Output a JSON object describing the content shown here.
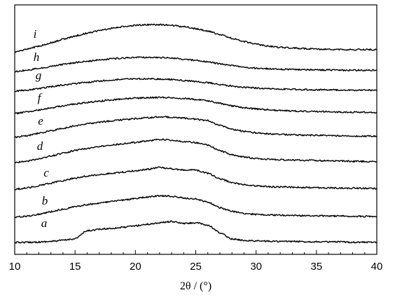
{
  "chart_data": {
    "type": "line",
    "xlabel": "2θ / (°)",
    "xlim": [
      10,
      40
    ],
    "xticks": [
      10,
      15,
      20,
      25,
      30,
      35,
      40
    ],
    "y_axis_ticks_labeled": false,
    "grid": false,
    "legend": "none",
    "line_color": "#000000",
    "x": [
      10,
      11,
      12,
      13,
      14,
      15,
      16,
      17,
      18,
      19,
      20,
      21,
      22,
      23,
      24,
      25,
      26,
      27,
      28,
      29,
      30,
      31,
      32,
      33,
      34,
      35,
      36,
      37,
      38,
      39,
      40
    ],
    "series": [
      {
        "name": "a",
        "values": [
          0.0,
          0.05,
          0.18,
          0.4,
          0.85,
          1.5,
          4.6,
          5.2,
          5.6,
          6.0,
          6.6,
          7.2,
          7.8,
          8.3,
          7.5,
          7.8,
          6.8,
          3.8,
          1.4,
          0.8,
          0.6,
          0.5,
          0.4,
          0.4,
          0.3,
          0.3,
          0.2,
          0.2,
          0.1,
          0.1,
          0.1
        ]
      },
      {
        "name": "b",
        "values": [
          0.0,
          0.4,
          1.2,
          2.2,
          3.2,
          4.2,
          5.0,
          5.6,
          6.2,
          6.8,
          7.4,
          8.0,
          8.5,
          8.3,
          7.6,
          7.2,
          6.0,
          3.8,
          2.3,
          1.5,
          1.1,
          0.9,
          0.8,
          0.7,
          0.6,
          0.55,
          0.5,
          0.45,
          0.4,
          0.35,
          0.3
        ]
      },
      {
        "name": "c",
        "values": [
          0.0,
          0.5,
          1.4,
          2.4,
          3.4,
          4.4,
          5.2,
          5.8,
          6.3,
          6.8,
          7.3,
          7.9,
          8.6,
          8.1,
          7.6,
          7.6,
          6.3,
          4.1,
          2.6,
          1.8,
          1.3,
          1.0,
          0.9,
          0.8,
          0.7,
          0.6,
          0.5,
          0.45,
          0.4,
          0.35,
          0.3
        ]
      },
      {
        "name": "d",
        "values": [
          0.0,
          0.5,
          1.5,
          2.6,
          3.7,
          4.8,
          5.6,
          6.3,
          6.9,
          7.5,
          8.0,
          8.6,
          9.2,
          8.9,
          8.4,
          7.9,
          6.9,
          4.7,
          3.1,
          2.2,
          1.6,
          1.3,
          1.1,
          1.0,
          0.9,
          0.8,
          0.7,
          0.6,
          0.5,
          0.45,
          0.4
        ]
      },
      {
        "name": "e",
        "values": [
          0.0,
          0.6,
          1.6,
          2.6,
          3.6,
          4.6,
          5.4,
          6.0,
          6.5,
          7.0,
          7.4,
          7.8,
          8.1,
          8.0,
          7.6,
          7.2,
          6.6,
          4.8,
          3.2,
          2.4,
          1.8,
          1.4,
          1.2,
          1.0,
          0.9,
          0.8,
          0.7,
          0.6,
          0.55,
          0.5,
          0.45
        ]
      },
      {
        "name": "f",
        "values": [
          0.0,
          0.6,
          1.4,
          2.2,
          3.0,
          3.8,
          4.4,
          4.9,
          5.4,
          5.8,
          6.1,
          6.3,
          6.4,
          6.3,
          6.0,
          5.6,
          5.0,
          4.0,
          3.0,
          2.3,
          1.8,
          1.5,
          1.2,
          1.0,
          0.9,
          0.8,
          0.7,
          0.6,
          0.55,
          0.5,
          0.45
        ]
      },
      {
        "name": "g",
        "values": [
          0.0,
          0.4,
          1.0,
          1.7,
          2.4,
          3.0,
          3.5,
          4.0,
          4.4,
          4.7,
          4.8,
          4.9,
          4.8,
          4.6,
          4.2,
          3.8,
          3.3,
          2.6,
          2.0,
          1.5,
          1.2,
          1.0,
          0.8,
          0.7,
          0.6,
          0.5,
          0.5,
          0.4,
          0.4,
          0.4,
          0.4
        ]
      },
      {
        "name": "h",
        "values": [
          0.0,
          0.5,
          1.2,
          2.0,
          2.8,
          3.5,
          4.1,
          4.6,
          5.0,
          5.3,
          5.5,
          5.6,
          5.5,
          5.3,
          4.9,
          4.4,
          3.8,
          3.0,
          2.3,
          1.7,
          1.3,
          1.1,
          0.9,
          0.8,
          0.7,
          0.6,
          0.6,
          0.5,
          0.5,
          0.5,
          0.5
        ]
      },
      {
        "name": "i",
        "values": [
          0.0,
          1.0,
          2.2,
          3.6,
          5.0,
          6.3,
          7.4,
          8.4,
          9.3,
          10.0,
          10.5,
          10.8,
          10.8,
          10.5,
          10.0,
          9.2,
          8.2,
          6.8,
          5.4,
          4.1,
          3.0,
          2.3,
          1.8,
          1.5,
          1.3,
          1.1,
          1.0,
          0.9,
          0.9,
          0.9,
          0.9
        ]
      }
    ]
  }
}
